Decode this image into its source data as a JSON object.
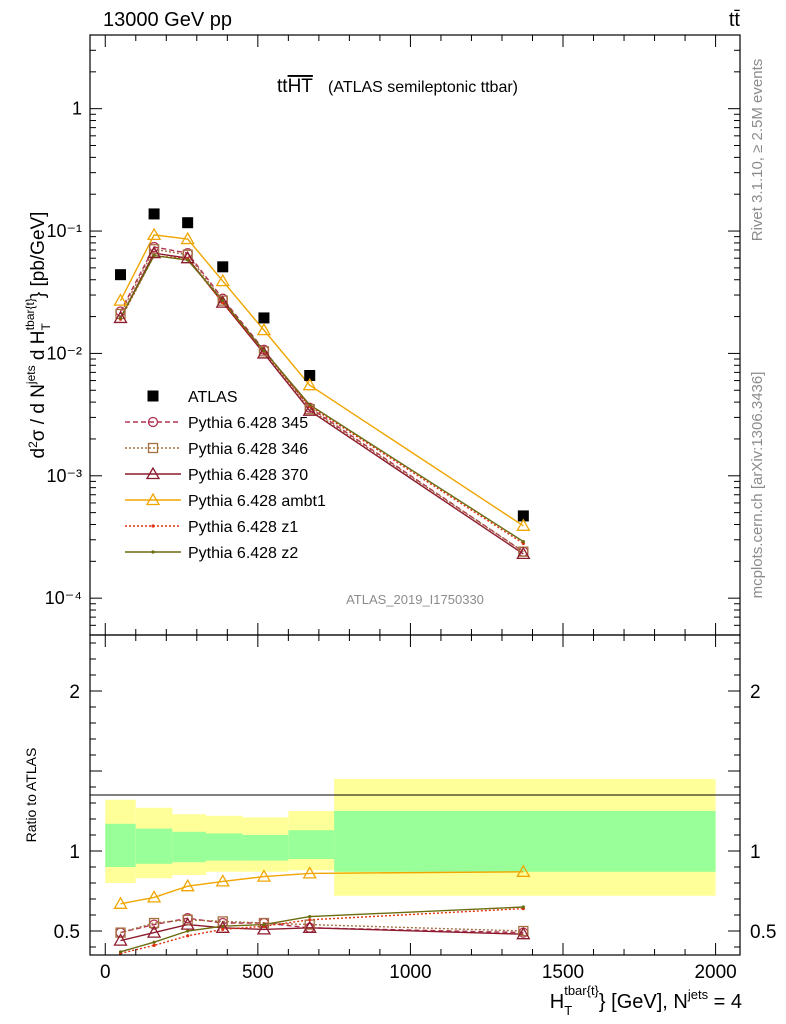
{
  "header": {
    "energy": "13000 GeV pp",
    "process": "tt̄",
    "side_top": "Rivet 3.1.10, ≥ 2.5M events",
    "side_bottom": "mcplots.cern.ch [arXiv:1306.3436]"
  },
  "chart_data": [
    {
      "type": "line",
      "title": "tt",
      "title_overline": "HT",
      "title_suffix": "(ATLAS semileptonic ttbar)",
      "watermark": "ATLAS_2019_I1750330",
      "ylabel": "d²σ / d N^jets d H_T^tbar{t} [pb/GeV]",
      "yscale": "log",
      "ylim": [
        5e-05,
        4
      ],
      "xlim": [
        -50,
        2080
      ],
      "y_tick_labels": [
        "1",
        "10⁻¹",
        "10⁻²",
        "10⁻³",
        "10⁻⁴"
      ],
      "legend_position": "left-middle",
      "x": [
        50,
        160,
        270,
        385,
        520,
        670,
        1370
      ],
      "series": [
        {
          "name": "ATLAS",
          "color": "#000000",
          "marker": "square",
          "values": [
            0.044,
            0.138,
            0.117,
            0.051,
            0.0195,
            0.0066,
            0.00047
          ]
        },
        {
          "name": "Pythia 6.428 345",
          "color": "#b03050",
          "marker": "circle",
          "dash": "5,3",
          "values": [
            0.022,
            0.074,
            0.066,
            0.028,
            0.0107,
            0.0036,
            0.00024
          ]
        },
        {
          "name": "Pythia 6.428 346",
          "color": "#a57040",
          "marker": "square-open",
          "dash": "2,2",
          "values": [
            0.021,
            0.071,
            0.064,
            0.027,
            0.0104,
            0.0035,
            0.00024
          ]
        },
        {
          "name": "Pythia 6.428 370",
          "color": "#8b1a2c",
          "marker": "triangle",
          "dash": "",
          "values": [
            0.0195,
            0.066,
            0.06,
            0.026,
            0.01,
            0.0034,
            0.00023
          ]
        },
        {
          "name": "Pythia 6.428 ambt1",
          "color": "#f0a500",
          "marker": "triangle",
          "dash": "",
          "values": [
            0.027,
            0.093,
            0.086,
            0.039,
            0.0155,
            0.0055,
            0.00039
          ]
        },
        {
          "name": "Pythia 6.428 z1",
          "color": "#e03010",
          "marker": "dot",
          "dash": "2,2",
          "values": [
            0.019,
            0.063,
            0.059,
            0.026,
            0.0104,
            0.0037,
            0.00028
          ]
        },
        {
          "name": "Pythia 6.428 z2",
          "color": "#6b6b10",
          "marker": "dot",
          "dash": "",
          "values": [
            0.0195,
            0.063,
            0.058,
            0.027,
            0.0105,
            0.0038,
            0.00029
          ]
        }
      ]
    },
    {
      "type": "line",
      "ylabel": "Ratio to ATLAS",
      "xlabel": "H_T^tbar{t} [GeV], N^jets = 4",
      "ylim": [
        0.35,
        2.35
      ],
      "xlim": [
        -50,
        2080
      ],
      "x_ticks": [
        0,
        500,
        1000,
        1500,
        2000
      ],
      "y_ticks": [
        0.5,
        1,
        2
      ],
      "bands": {
        "edges": [
          0,
          100,
          220,
          330,
          450,
          600,
          750,
          2000
        ],
        "yellow_lo": [
          0.8,
          0.83,
          0.85,
          0.87,
          0.87,
          0.88,
          0.72
        ],
        "yellow_hi": [
          1.32,
          1.27,
          1.23,
          1.22,
          1.21,
          1.25,
          1.45
        ],
        "green_lo": [
          0.9,
          0.92,
          0.93,
          0.94,
          0.94,
          0.95,
          0.87
        ],
        "green_hi": [
          1.17,
          1.14,
          1.12,
          1.11,
          1.1,
          1.13,
          1.25
        ],
        "green_color": "#99ff99",
        "yellow_color": "#ffff99"
      },
      "x": [
        50,
        160,
        270,
        385,
        520,
        670,
        1370
      ],
      "series": [
        {
          "name": "Pythia 6.428 345",
          "color": "#b03050",
          "marker": "circle",
          "dash": "5,3",
          "values": [
            0.49,
            0.54,
            0.58,
            0.55,
            0.55,
            0.52,
            0.49
          ]
        },
        {
          "name": "Pythia 6.428 346",
          "color": "#a57040",
          "marker": "square-open",
          "dash": "2,2",
          "values": [
            0.49,
            0.55,
            0.57,
            0.56,
            0.55,
            0.54,
            0.5
          ]
        },
        {
          "name": "Pythia 6.428 370",
          "color": "#8b1a2c",
          "marker": "triangle",
          "dash": "",
          "values": [
            0.44,
            0.49,
            0.54,
            0.52,
            0.51,
            0.52,
            0.48
          ]
        },
        {
          "name": "Pythia 6.428 ambt1",
          "color": "#f0a500",
          "marker": "triangle",
          "dash": "",
          "values": [
            0.67,
            0.71,
            0.78,
            0.81,
            0.84,
            0.86,
            0.87
          ]
        },
        {
          "name": "Pythia 6.428 z1",
          "color": "#e03010",
          "marker": "dot",
          "dash": "2,2",
          "values": [
            0.36,
            0.41,
            0.47,
            0.51,
            0.53,
            0.57,
            0.64
          ]
        },
        {
          "name": "Pythia 6.428 z2",
          "color": "#6b6b10",
          "marker": "dot",
          "dash": "",
          "values": [
            0.37,
            0.43,
            0.5,
            0.53,
            0.54,
            0.59,
            0.65
          ]
        }
      ]
    }
  ]
}
